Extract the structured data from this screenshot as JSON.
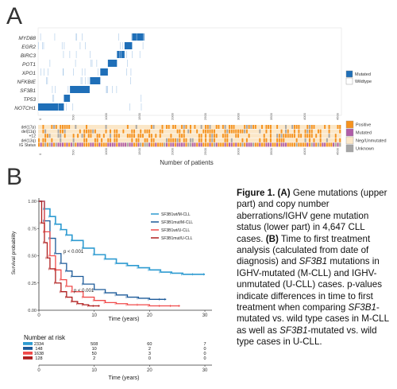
{
  "panel_a": {
    "letter": "A",
    "genes": [
      "MYD88",
      "EGR2",
      "BIRC3",
      "POT1",
      "XPO1",
      "NFKBIE",
      "SF3B1",
      "TP53",
      "NOTCH1"
    ],
    "cnv_rows": [
      "del(17p)",
      "del(11q)",
      "+12",
      "del(13q)",
      "IG Status"
    ],
    "x_ticks": [
      "0",
      "500",
      "1000",
      "1500",
      "2000",
      "2500",
      "3000",
      "3500",
      "4000",
      "4500"
    ],
    "xlabel": "Number of patients",
    "legend_mut": [
      {
        "label": "Mutated",
        "color": "#1f6fb8"
      },
      {
        "label": "Wildtype",
        "color": "#ffffff"
      }
    ],
    "legend_cnv": [
      {
        "label": "Positive",
        "color": "#f5921e"
      },
      {
        "label": "Mutated",
        "color": "#b05da8"
      },
      {
        "label": "Neg/Unmutated",
        "color": "#fbe7c8"
      },
      {
        "label": "Unknown",
        "color": "#a6a6a6"
      }
    ]
  },
  "panel_b": {
    "letter": "B",
    "chart_data": {
      "type": "line",
      "title": "",
      "xlabel": "Time (years)",
      "ylabel": "Survival probability",
      "xlim": [
        0,
        31
      ],
      "ylim": [
        0,
        1
      ],
      "x_ticks": [
        "0",
        "10",
        "20",
        "30"
      ],
      "y_ticks": [
        "0.00",
        "0.25",
        "0.50",
        "0.75",
        "1.00"
      ],
      "legend_position": "top-right",
      "series": [
        {
          "name": "SF3B1wt/M-CLL",
          "color": "#2e9bd1",
          "x": [
            0,
            1,
            2,
            3,
            4,
            5,
            6,
            8,
            10,
            12,
            14,
            16,
            18,
            20,
            22,
            24,
            26,
            28,
            30
          ],
          "y": [
            1.0,
            0.93,
            0.86,
            0.79,
            0.74,
            0.69,
            0.64,
            0.57,
            0.51,
            0.47,
            0.43,
            0.41,
            0.39,
            0.37,
            0.35,
            0.34,
            0.33,
            0.33,
            0.33
          ]
        },
        {
          "name": "SF3B1mut/M-CLL",
          "color": "#1c5a99",
          "x": [
            0,
            1,
            2,
            3,
            4,
            5,
            6,
            8,
            10,
            12,
            14,
            16,
            18,
            20,
            22,
            23
          ],
          "y": [
            1.0,
            0.82,
            0.66,
            0.52,
            0.43,
            0.36,
            0.31,
            0.24,
            0.19,
            0.16,
            0.14,
            0.12,
            0.11,
            0.1,
            0.1,
            0.1
          ]
        },
        {
          "name": "SF3B1wt/U-CLL",
          "color": "#f04a4a",
          "x": [
            0,
            1,
            2,
            3,
            4,
            5,
            6,
            8,
            10,
            12,
            14,
            16,
            18,
            20,
            22,
            24,
            25.5
          ],
          "y": [
            1.0,
            0.72,
            0.5,
            0.37,
            0.28,
            0.22,
            0.17,
            0.12,
            0.09,
            0.07,
            0.06,
            0.05,
            0.05,
            0.04,
            0.04,
            0.04,
            0.04
          ]
        },
        {
          "name": "SF3B1mut/U-CLL",
          "color": "#b01e1e",
          "x": [
            0,
            0.5,
            1,
            1.5,
            2,
            3,
            4,
            5,
            6,
            7,
            8,
            9,
            10,
            11
          ],
          "y": [
            1.0,
            0.8,
            0.62,
            0.48,
            0.38,
            0.25,
            0.17,
            0.12,
            0.08,
            0.06,
            0.05,
            0.04,
            0.04,
            0.04
          ]
        }
      ],
      "annotations": [
        "p < 0.001",
        "p < 0.001"
      ]
    },
    "risk_table": {
      "title": "Number at risk",
      "time_ticks": [
        "0",
        "10",
        "20",
        "30"
      ],
      "rows": [
        {
          "color": "#2e9bd1",
          "values": [
            "2334",
            "508",
            "60",
            "7"
          ]
        },
        {
          "color": "#1c5a99",
          "values": [
            "148",
            "10",
            "2",
            "0"
          ]
        },
        {
          "color": "#f04a4a",
          "values": [
            "1638",
            "50",
            "3",
            "0"
          ]
        },
        {
          "color": "#b01e1e",
          "values": [
            "128",
            "2",
            "0",
            "0"
          ]
        }
      ]
    }
  },
  "caption": {
    "p1": "Figure 1. ",
    "p2": "(A)",
    "p3": " Gene mutations (upper part) and copy number aberrations/IGHV gene mutation status (lower part) in 4,647 CLL cases. ",
    "p4": "(B)",
    "p5": " Time to first treatment analysis (calculated from date of diagnosis) and ",
    "p6": "SF3B1",
    "p7": " mutations in IGHV-mutated (M-CLL) and IGHV-unmutated (U-CLL) cases. p-values indicate differences in time to first treatment when comparing ",
    "p8": "SF3B1",
    "p9": "-mutated vs. wild type cases in M-CLL as well as ",
    "p10": "SF3B1",
    "p11": "-mutated vs. wild type cases in U-CLL."
  }
}
